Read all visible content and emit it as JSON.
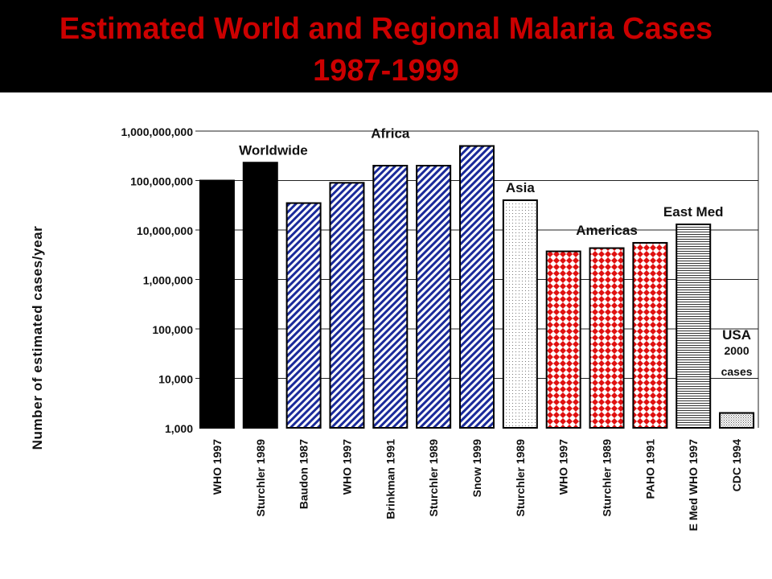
{
  "title": {
    "line1": "Estimated World and Regional Malaria Cases",
    "line2": "1987-1999"
  },
  "chart_data": {
    "type": "bar",
    "scale": "log",
    "ylim": [
      1000,
      1000000000
    ],
    "ylabel": "Number of estimated cases/year",
    "y_ticks": [
      {
        "value": 1000000000,
        "label": "1,000,000,000"
      },
      {
        "value": 100000000,
        "label": "100,000,000"
      },
      {
        "value": 10000000,
        "label": "10,000,000"
      },
      {
        "value": 1000000,
        "label": "1,000,000"
      },
      {
        "value": 100000,
        "label": "100,000"
      },
      {
        "value": 10000,
        "label": "10,000"
      },
      {
        "value": 1000,
        "label": "1,000"
      }
    ],
    "grid": "horizontal",
    "categories": [
      "WHO 1997",
      "Sturchler 1989",
      "Baudon 1987",
      "WHO 1997",
      "Brinkman 1991",
      "Sturchler 1989",
      "Snow 1999",
      "Sturchler 1989",
      "WHO 1997",
      "Sturchler 1989",
      "PAHO 1991",
      "E Med WHO 1997",
      "CDC 1994"
    ],
    "values": [
      100000000,
      230000000,
      35000000,
      90000000,
      200000000,
      200000000,
      500000000,
      40000000,
      3700000,
      4300000,
      5500000,
      13000000,
      2000
    ],
    "fills": [
      "solid-black",
      "solid-black",
      "hatch-blue",
      "hatch-blue",
      "hatch-blue",
      "hatch-blue",
      "hatch-blue",
      "dots-light",
      "checker-red",
      "checker-red",
      "checker-red",
      "hlines",
      "dots-dense"
    ],
    "regions": [
      {
        "label": "Worldwide",
        "bars": [
          0,
          1
        ]
      },
      {
        "label": "Africa",
        "bars": [
          2,
          6
        ]
      },
      {
        "label": "Asia",
        "bars": [
          7,
          7
        ]
      },
      {
        "label": "Americas",
        "bars": [
          8,
          10
        ]
      },
      {
        "label": "East Med",
        "bars": [
          11,
          11
        ]
      },
      {
        "label": "USA",
        "bars": [
          12,
          12
        ]
      }
    ],
    "annotations": [
      {
        "text": "2000",
        "bar": 12
      },
      {
        "text": "cases",
        "bar": 12
      }
    ]
  },
  "colors": {
    "title_red": "#cc0000",
    "title_background": "#000000",
    "hatch_blue": "#1a2a9a",
    "checker_red": "#e01010",
    "text": "#111111"
  }
}
